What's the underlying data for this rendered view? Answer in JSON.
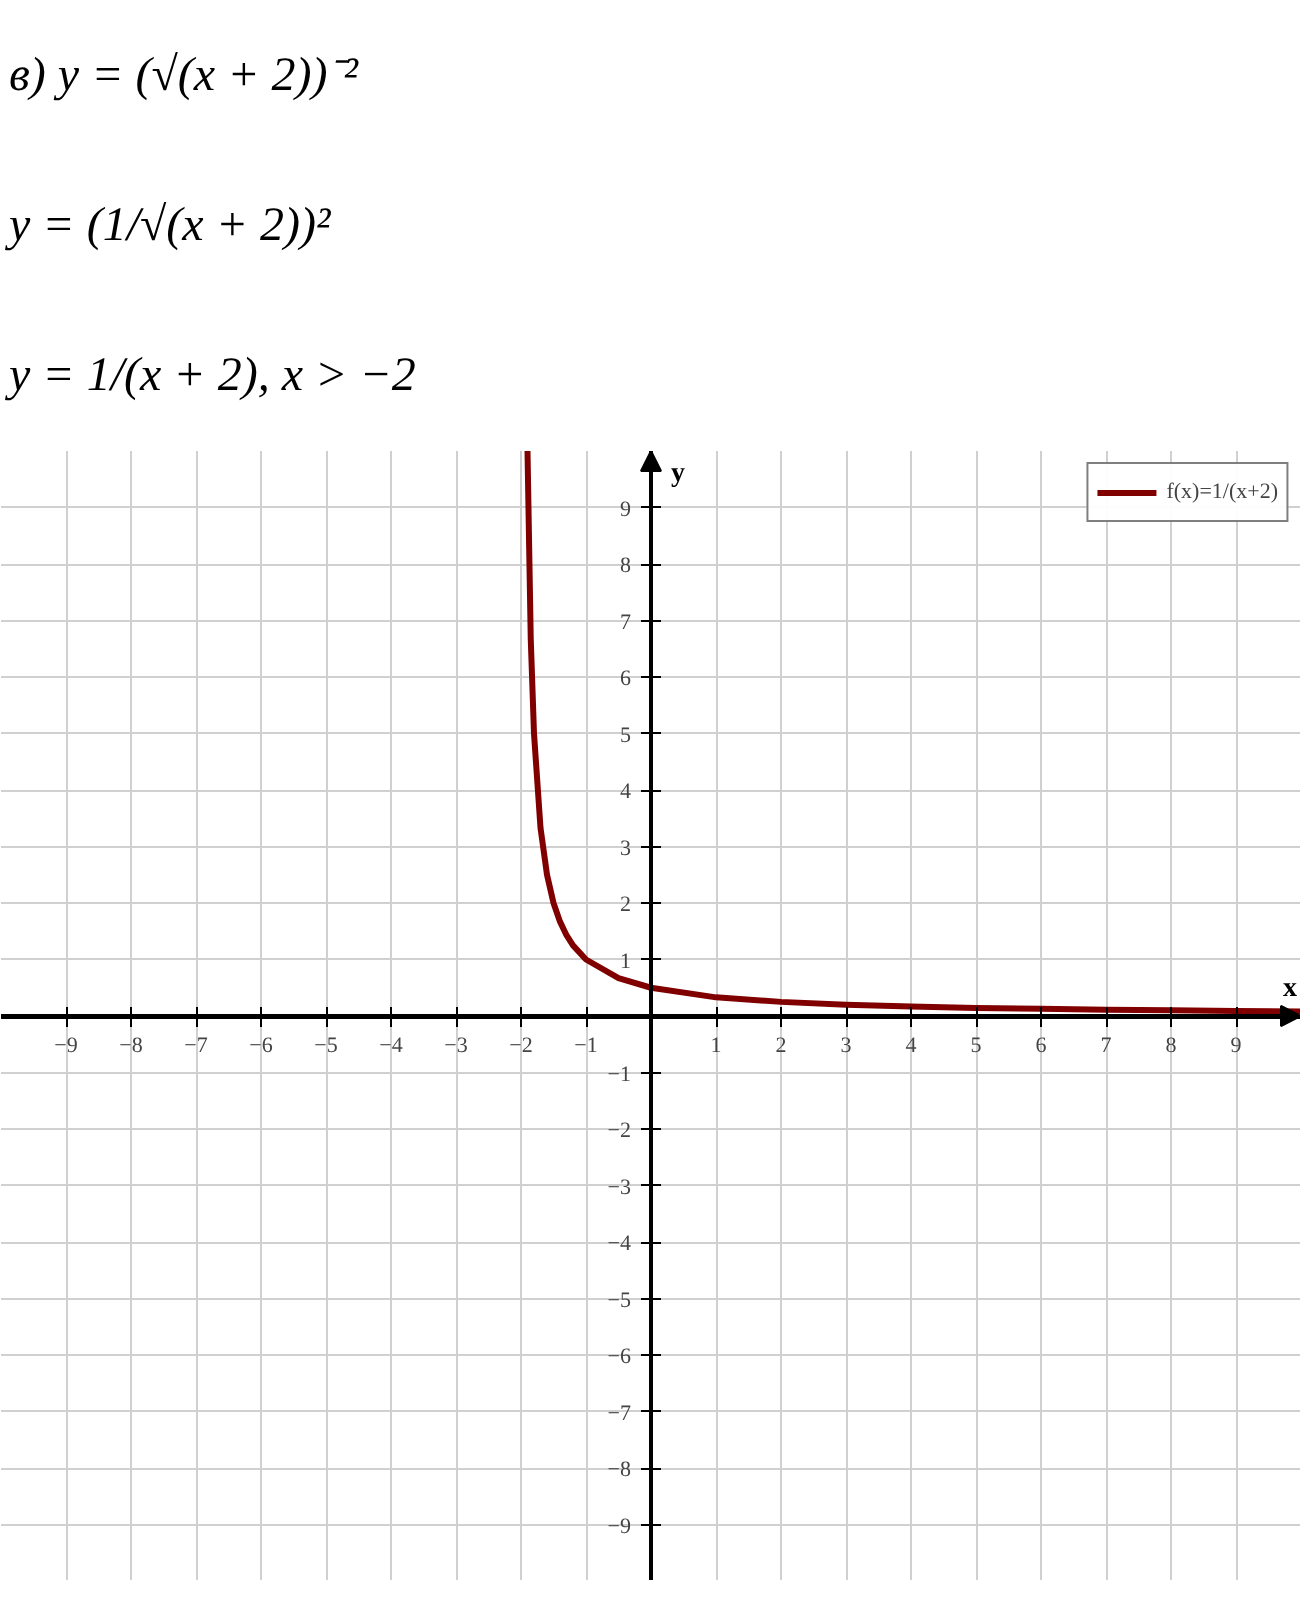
{
  "chart_data": {
    "type": "line",
    "annotations": [
      "в) y = (√(x + 2))⁻²",
      "y = (1/√(x + 2))²",
      "y = 1/(x + 2),     x > −2"
    ],
    "xlabel": "x",
    "ylabel": "y",
    "x": [
      -1.9,
      -1.85,
      -1.8,
      -1.7,
      -1.6,
      -1.5,
      -1.4,
      -1.3,
      -1.2,
      -1,
      -0.5,
      0,
      1,
      2,
      3,
      4,
      5,
      6,
      7,
      8,
      9,
      10
    ],
    "series": [
      {
        "name": "f(x)=1/(x+2)",
        "color": "#800000",
        "values": [
          10,
          6.67,
          5,
          3.33,
          2.5,
          2,
          1.67,
          1.43,
          1.25,
          1,
          0.67,
          0.5,
          0.33,
          0.25,
          0.2,
          0.17,
          0.14,
          0.13,
          0.11,
          0.1,
          0.09,
          0.08
        ]
      }
    ],
    "xlim": [
      -10,
      10
    ],
    "ylim": [
      -10,
      10
    ],
    "xticks": [
      -9,
      -8,
      -7,
      -6,
      -5,
      -4,
      -3,
      -2,
      -1,
      1,
      2,
      3,
      4,
      5,
      6,
      7,
      8,
      9
    ],
    "yticks": [
      -9,
      -8,
      -7,
      -6,
      -5,
      -4,
      -3,
      -2,
      -1,
      1,
      2,
      3,
      4,
      5,
      6,
      7,
      8,
      9
    ],
    "grid": true,
    "legend": "top right",
    "marker": "none",
    "line_style": "solid"
  }
}
